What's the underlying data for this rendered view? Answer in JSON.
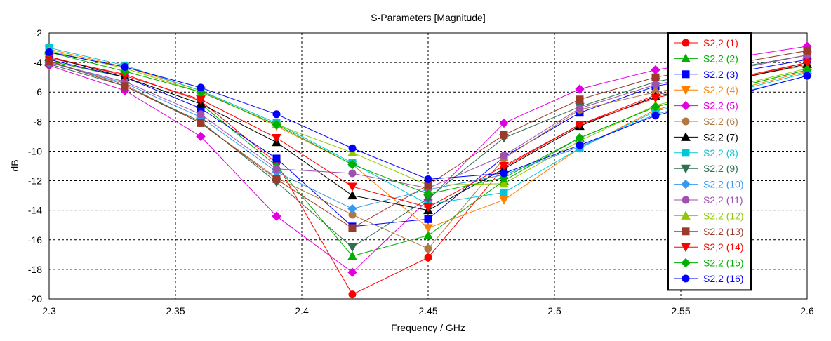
{
  "chart_data": {
    "type": "line",
    "title": "S-Parameters [Magnitude]",
    "xlabel": "Frequency / GHz",
    "ylabel": "dB",
    "xlim": [
      2.3,
      2.6
    ],
    "ylim": [
      -20,
      -2
    ],
    "x_ticks": [
      2.3,
      2.35,
      2.4,
      2.45,
      2.5,
      2.55,
      2.6
    ],
    "x_tick_labels": [
      "2.3",
      "2.35",
      "2.4",
      "2.45",
      "2.5",
      "2.55",
      "2.6"
    ],
    "y_ticks": [
      -2,
      -4,
      -6,
      -8,
      -10,
      -12,
      -14,
      -16,
      -18,
      -20
    ],
    "y_tick_labels": [
      "-2",
      "-4",
      "-6",
      "-8",
      "-10",
      "-12",
      "-14",
      "-16",
      "-18",
      "-20"
    ],
    "grid": true,
    "legend_position": "right",
    "x": [
      2.3,
      2.33,
      2.36,
      2.39,
      2.42,
      2.45,
      2.48,
      2.51,
      2.54,
      2.6
    ],
    "series": [
      {
        "name": "S2,2 (1)",
        "color": "#ff0000",
        "marker": "circle",
        "values": [
          -3.7,
          -4.8,
          -6.6,
          -10.8,
          -19.7,
          -17.2,
          -11.1,
          -8.2,
          -6.2,
          -4.0
        ]
      },
      {
        "name": "S2,2 (2)",
        "color": "#00b000",
        "marker": "triangle-up",
        "values": [
          -3.9,
          -5.0,
          -6.8,
          -11.0,
          -17.1,
          -15.7,
          -12.0,
          -9.1,
          -7.0,
          -4.5
        ]
      },
      {
        "name": "S2,2 (3)",
        "color": "#0000ff",
        "marker": "square",
        "values": [
          -3.8,
          -5.0,
          -7.1,
          -10.5,
          -15.1,
          -14.6,
          -10.4,
          -7.4,
          -5.6,
          -3.8
        ]
      },
      {
        "name": "S2,2 (4)",
        "color": "#ff8000",
        "marker": "triangle-down",
        "values": [
          -3.1,
          -4.3,
          -5.9,
          -8.3,
          -10.9,
          -15.2,
          -13.3,
          -9.8,
          -7.2,
          -4.6
        ]
      },
      {
        "name": "S2,2 (5)",
        "color": "#e000e0",
        "marker": "diamond",
        "values": [
          -4.2,
          -5.9,
          -9.0,
          -14.4,
          -18.2,
          -13.3,
          -8.1,
          -5.8,
          -4.5,
          -2.9
        ]
      },
      {
        "name": "S2,2 (6)",
        "color": "#b07840",
        "marker": "circle",
        "values": [
          -3.9,
          -5.5,
          -8.1,
          -11.8,
          -14.3,
          -16.6,
          -10.5,
          -7.2,
          -6.0,
          -4.2
        ]
      },
      {
        "name": "S2,2 (7)",
        "color": "#000000",
        "marker": "triangle-up",
        "values": [
          -3.6,
          -5.0,
          -6.8,
          -9.4,
          -13.0,
          -14.0,
          -11.2,
          -8.3,
          -6.3,
          -4.1
        ]
      },
      {
        "name": "S2,2 (8)",
        "color": "#00c8d8",
        "marker": "square",
        "values": [
          -3.0,
          -4.2,
          -5.9,
          -8.1,
          -10.8,
          -13.6,
          -12.8,
          -9.8,
          -7.3,
          -4.7
        ]
      },
      {
        "name": "S2,2 (9)",
        "color": "#307050",
        "marker": "triangle-down",
        "values": [
          -4.1,
          -5.6,
          -8.0,
          -12.1,
          -16.5,
          -13.2,
          -9.1,
          -7.0,
          -5.3,
          -3.5
        ]
      },
      {
        "name": "S2,2 (10)",
        "color": "#3898f0",
        "marker": "diamond",
        "values": [
          -4.0,
          -5.4,
          -7.7,
          -11.4,
          -13.9,
          -12.6,
          -11.6,
          -9.7,
          -7.5,
          -4.9
        ]
      },
      {
        "name": "S2,2 (11)",
        "color": "#a050b0",
        "marker": "circle",
        "values": [
          -4.0,
          -5.3,
          -7.5,
          -11.2,
          -11.5,
          -12.5,
          -10.3,
          -7.1,
          -5.5,
          -3.5
        ]
      },
      {
        "name": "S2,2 (12)",
        "color": "#90c800",
        "marker": "triangle-up",
        "values": [
          -3.2,
          -4.4,
          -6.0,
          -8.2,
          -10.1,
          -12.3,
          -12.2,
          -9.3,
          -6.9,
          -4.4
        ]
      },
      {
        "name": "S2,2 (13)",
        "color": "#9b3a2a",
        "marker": "square",
        "values": [
          -3.9,
          -5.6,
          -8.1,
          -11.9,
          -15.2,
          -12.3,
          -8.9,
          -6.5,
          -5.0,
          -3.2
        ]
      },
      {
        "name": "S2,2 (14)",
        "color": "#ff0000",
        "marker": "triangle-down",
        "values": [
          -3.6,
          -4.9,
          -6.5,
          -9.1,
          -12.4,
          -13.8,
          -11.0,
          -8.2,
          -6.4,
          -4.0
        ]
      },
      {
        "name": "S2,2 (15)",
        "color": "#00b000",
        "marker": "diamond",
        "values": [
          -3.3,
          -4.6,
          -6.0,
          -8.2,
          -10.9,
          -12.9,
          -11.8,
          -9.1,
          -7.0,
          -4.5
        ]
      },
      {
        "name": "S2,2 (16)",
        "color": "#0000ff",
        "marker": "circle",
        "values": [
          -3.3,
          -4.3,
          -5.7,
          -7.5,
          -9.8,
          -11.9,
          -11.5,
          -9.6,
          -7.6,
          -4.9
        ]
      }
    ]
  }
}
